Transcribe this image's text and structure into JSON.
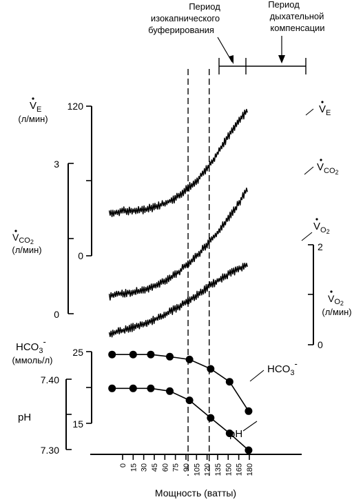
{
  "chart_data": {
    "type": "line",
    "annotations": {
      "isocapnic_line1": "Период",
      "isocapnic_line2": "изокапнического",
      "isocapnic_line3": "буферирования",
      "compensation_line1": "Период",
      "compensation_line2": "дыхательной",
      "compensation_line3": "компенсации"
    },
    "x_axis": {
      "label": "Мощность (ватты)",
      "ticks": [
        0,
        15,
        30,
        45,
        60,
        75,
        90,
        105,
        120,
        135,
        150,
        165,
        180
      ],
      "range": [
        -21,
        182
      ],
      "threshold_isocapnic": 93,
      "threshold_compensation": 123
    },
    "axes": {
      "ve": {
        "label_main": "V",
        "label_sub": "E",
        "unit": "(л/мин)",
        "ticks": [
          "120",
          "0"
        ],
        "range": [
          0,
          120
        ]
      },
      "vco2": {
        "label_main": "V",
        "label_sub": "CO",
        "label_subsub": "2",
        "unit": "(л/мин)",
        "ticks": [
          "3",
          "0"
        ],
        "range": [
          0,
          3
        ]
      },
      "vo2": {
        "label_main": "V",
        "label_sub": "O",
        "label_subsub": "2",
        "unit": "(л/мин)",
        "ticks": [
          "2",
          "0"
        ],
        "range": [
          0,
          2
        ]
      },
      "hco3": {
        "label_main": "HCO",
        "label_sub": "3",
        "label_sup": "-",
        "unit": "(ммоль/л)",
        "ticks": [
          "25",
          "15"
        ],
        "range": [
          15,
          25
        ]
      },
      "ph": {
        "label": "pH",
        "ticks": [
          "7.40",
          "7.30"
        ],
        "range": [
          7.3,
          7.4
        ]
      }
    },
    "series": [
      {
        "name": "VE",
        "label_main": "V",
        "label_sub": "E",
        "axis": "ve",
        "x": [
          -19,
          0,
          15,
          30,
          45,
          60,
          75,
          90,
          105,
          120,
          135,
          150,
          165,
          178
        ],
        "values": [
          34,
          36,
          36,
          37,
          39,
          42,
          46,
          53,
          60,
          70,
          82,
          96,
          108,
          117
        ]
      },
      {
        "name": "VCO2",
        "label_main": "V",
        "label_sub": "CO",
        "label_subsub": "2",
        "axis": "vco2",
        "x": [
          -19,
          0,
          15,
          30,
          45,
          60,
          75,
          90,
          105,
          120,
          135,
          150,
          165,
          178
        ],
        "values": [
          0.35,
          0.41,
          0.43,
          0.47,
          0.55,
          0.65,
          0.78,
          0.96,
          1.15,
          1.38,
          1.62,
          1.9,
          2.2,
          2.52
        ]
      },
      {
        "name": "VO2",
        "label_main": "V",
        "label_sub": "O",
        "label_subsub": "2",
        "axis": "vo2",
        "x": [
          -19,
          0,
          15,
          30,
          45,
          60,
          75,
          90,
          105,
          120,
          135,
          150,
          165,
          178
        ],
        "values": [
          0.22,
          0.28,
          0.35,
          0.41,
          0.5,
          0.6,
          0.72,
          0.84,
          0.99,
          1.14,
          1.28,
          1.41,
          1.52,
          1.6
        ]
      },
      {
        "name": "HCO3-",
        "label_main": "HCO",
        "label_sub": "3",
        "label_sup": "-",
        "axis": "hco3",
        "x": [
          -15,
          15,
          40,
          67,
          95,
          125,
          152,
          179
        ],
        "values": [
          24.6,
          24.6,
          24.6,
          24.3,
          23.9,
          22.6,
          20.8,
          16.7
        ]
      },
      {
        "name": "pH",
        "label": "pH",
        "axis": "ph",
        "x": [
          -15,
          15,
          40,
          67,
          95,
          125,
          152,
          179
        ],
        "values": [
          7.387,
          7.387,
          7.387,
          7.383,
          7.37,
          7.345,
          7.323,
          7.299
        ]
      }
    ]
  }
}
